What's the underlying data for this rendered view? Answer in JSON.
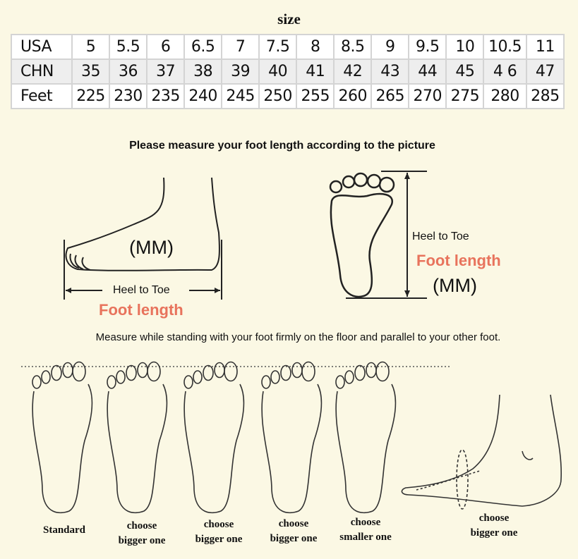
{
  "title": "size",
  "size_table": {
    "rows": [
      {
        "label": "USA",
        "values": [
          "5",
          "5.5",
          "6",
          "6.5",
          "7",
          "7.5",
          "8",
          "8.5",
          "9",
          "9.5",
          "10",
          "10.5",
          "11"
        ]
      },
      {
        "label": "CHN",
        "values": [
          "35",
          "36",
          "37",
          "38",
          "39",
          "40",
          "41",
          "42",
          "43",
          "44",
          "45",
          "4 6",
          "47"
        ]
      },
      {
        "label": "Feet",
        "values": [
          "225",
          "230",
          "235",
          "240",
          "245",
          "250",
          "255",
          "260",
          "265",
          "270",
          "275",
          "280",
          "285"
        ]
      }
    ]
  },
  "heading": "Please measure your foot length according to the picture",
  "side_diagram": {
    "unit": "(MM)",
    "measure_label": "Heel to Toe",
    "length_label": "Foot length"
  },
  "top_diagram": {
    "unit": "(MM)",
    "measure_label": "Heel to Toe",
    "length_label": "Foot length"
  },
  "measure_note": "Measure while standing with your foot firmly on the floor and parallel to your other foot.",
  "fit_examples": [
    {
      "line1": "Standard",
      "line2": ""
    },
    {
      "line1": "choose",
      "line2": "bigger one"
    },
    {
      "line1": "choose",
      "line2": "bigger one"
    },
    {
      "line1": "choose",
      "line2": "bigger one"
    },
    {
      "line1": "choose",
      "line2": "smaller one"
    },
    {
      "line1": "choose",
      "line2": "bigger one"
    }
  ],
  "colors": {
    "background": "#fbf8e4",
    "accent": "#e8735c"
  }
}
